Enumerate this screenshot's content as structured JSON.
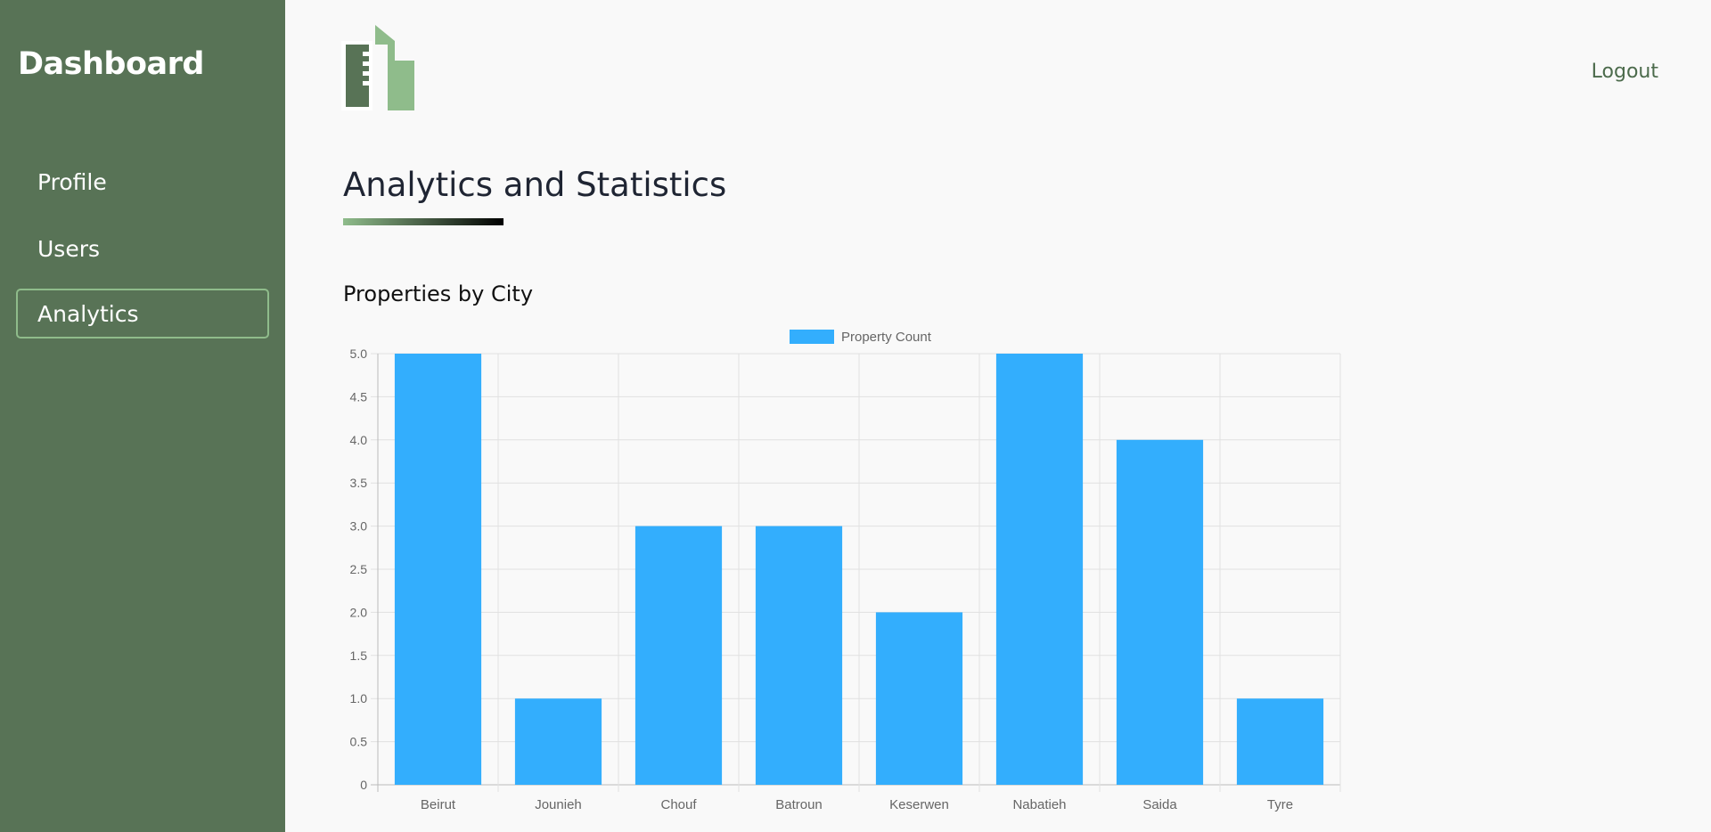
{
  "sidebar": {
    "brand": "Dashboard",
    "items": [
      {
        "label": "Profile",
        "active": false
      },
      {
        "label": "Users",
        "active": false
      },
      {
        "label": "Analytics",
        "active": true
      }
    ]
  },
  "header": {
    "logo_icon": "buildings-logo-icon",
    "logout_label": "Logout"
  },
  "main": {
    "title": "Analytics and Statistics",
    "chart_heading": "Properties by City"
  },
  "colors": {
    "sidebar_bg": "#587356",
    "accent_green": "#8fbc8b",
    "bar_color": "#33aefd"
  },
  "chart_data": {
    "type": "bar",
    "title": "",
    "xlabel": "",
    "ylabel": "",
    "categories": [
      "Beirut",
      "Jounieh",
      "Chouf",
      "Batroun",
      "Keserwen",
      "Nabatieh",
      "Saida",
      "Tyre"
    ],
    "series": [
      {
        "name": "Property Count",
        "values": [
          5,
          1,
          3,
          3,
          2,
          5,
          4,
          1
        ]
      }
    ],
    "ylim": [
      0,
      5
    ],
    "yticks": [
      "0",
      "0.5",
      "1.0",
      "1.5",
      "2.0",
      "2.5",
      "3.0",
      "3.5",
      "4.0",
      "4.5",
      "5.0"
    ],
    "grid": true,
    "legend": "top-center"
  }
}
